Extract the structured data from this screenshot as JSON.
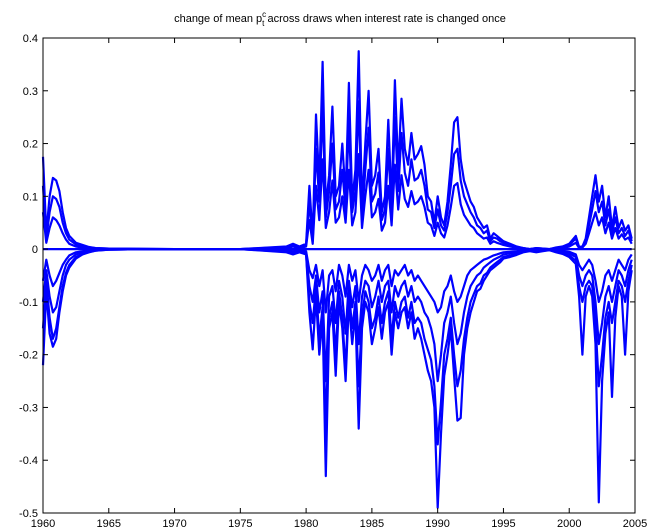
{
  "chart_data": {
    "type": "line",
    "title": {
      "prefix": "change of mean p",
      "superscript": "c",
      "subscript": "t",
      "suffix": " across draws when interest rate is changed once"
    },
    "xlabel": "",
    "ylabel": "",
    "xlim": [
      1960,
      2005
    ],
    "ylim": [
      -0.5,
      0.4
    ],
    "x_ticks": [
      1960,
      1965,
      1970,
      1975,
      1980,
      1985,
      1990,
      1995,
      2000,
      2005
    ],
    "y_ticks": [
      -0.5,
      -0.4,
      -0.3,
      -0.2,
      -0.1,
      0,
      0.1,
      0.2,
      0.3,
      0.4
    ],
    "grid": false,
    "legend": "none",
    "line_color": "#0000ff",
    "x": [
      1960.0,
      1960.25,
      1960.5,
      1960.75,
      1961.0,
      1961.25,
      1961.5,
      1961.75,
      1962.0,
      1962.5,
      1963.0,
      1963.5,
      1964.0,
      1965.0,
      1970.0,
      1975.0,
      1978.5,
      1979.0,
      1979.5,
      1980.0,
      1980.25,
      1980.5,
      1980.75,
      1981.0,
      1981.25,
      1981.5,
      1981.75,
      1982.0,
      1982.25,
      1982.5,
      1982.75,
      1983.0,
      1983.25,
      1983.5,
      1983.75,
      1984.0,
      1984.25,
      1984.5,
      1984.75,
      1985.0,
      1985.25,
      1985.5,
      1985.75,
      1986.0,
      1986.25,
      1986.5,
      1986.75,
      1987.0,
      1987.25,
      1987.5,
      1987.75,
      1988.0,
      1988.25,
      1988.5,
      1988.75,
      1989.0,
      1989.25,
      1989.5,
      1989.75,
      1990.0,
      1990.25,
      1990.5,
      1990.75,
      1991.0,
      1991.25,
      1991.5,
      1991.75,
      1992.0,
      1992.25,
      1992.5,
      1992.75,
      1993.0,
      1993.25,
      1993.5,
      1993.75,
      1994.0,
      1994.25,
      1994.5,
      1994.75,
      1995.0,
      1995.5,
      1996.0,
      1996.5,
      1997.0,
      1997.5,
      1998.0,
      1998.5,
      1999.0,
      1999.5,
      2000.0,
      2000.5,
      2000.75,
      2001.0,
      2001.25,
      2001.5,
      2001.75,
      2002.0,
      2002.25,
      2002.5,
      2002.75,
      2003.0,
      2003.25,
      2003.5,
      2003.75,
      2004.0,
      2004.25,
      2004.5,
      2004.75
    ],
    "series": [
      {
        "values": [
          0.175,
          0.03,
          0.1,
          0.135,
          0.13,
          0.11,
          0.07,
          0.04,
          0.025,
          0.012,
          0.008,
          0.004,
          0.002,
          0.001,
          0.0,
          0.0,
          0.005,
          0.01,
          0.005,
          0.01,
          0.12,
          0.02,
          0.255,
          0.12,
          0.355,
          0.08,
          0.14,
          0.27,
          0.1,
          0.12,
          0.2,
          0.1,
          0.315,
          0.09,
          0.15,
          0.375,
          0.08,
          0.2,
          0.3,
          0.12,
          0.14,
          0.19,
          0.07,
          0.1,
          0.245,
          0.09,
          0.32,
          0.15,
          0.285,
          0.19,
          0.16,
          0.22,
          0.17,
          0.18,
          0.195,
          0.16,
          0.1,
          0.09,
          0.05,
          0.1,
          0.06,
          0.045,
          0.09,
          0.16,
          0.24,
          0.25,
          0.17,
          0.13,
          0.11,
          0.09,
          0.08,
          0.06,
          0.05,
          0.04,
          0.045,
          0.02,
          0.03,
          0.025,
          0.02,
          0.015,
          0.01,
          0.005,
          0.002,
          0.0,
          0.002,
          0.001,
          0.0,
          0.003,
          0.005,
          0.01,
          0.025,
          0.004,
          0.005,
          0.02,
          0.06,
          0.1,
          0.14,
          0.09,
          0.12,
          0.06,
          0.1,
          0.04,
          0.08,
          0.04,
          0.055,
          0.035,
          0.045,
          0.02
        ]
      },
      {
        "values": [
          0.12,
          0.02,
          0.07,
          0.1,
          0.095,
          0.08,
          0.05,
          0.03,
          0.018,
          0.009,
          0.006,
          0.003,
          0.002,
          0.001,
          0.0,
          0.0,
          0.004,
          0.008,
          0.004,
          0.008,
          0.09,
          0.015,
          0.19,
          0.09,
          0.27,
          0.06,
          0.11,
          0.2,
          0.075,
          0.09,
          0.15,
          0.075,
          0.24,
          0.07,
          0.11,
          0.28,
          0.06,
          0.15,
          0.23,
          0.09,
          0.105,
          0.145,
          0.055,
          0.075,
          0.19,
          0.07,
          0.25,
          0.11,
          0.22,
          0.145,
          0.12,
          0.17,
          0.13,
          0.135,
          0.15,
          0.12,
          0.075,
          0.07,
          0.04,
          0.075,
          0.045,
          0.035,
          0.07,
          0.12,
          0.18,
          0.19,
          0.13,
          0.1,
          0.085,
          0.07,
          0.06,
          0.045,
          0.04,
          0.03,
          0.035,
          0.015,
          0.022,
          0.02,
          0.015,
          0.012,
          0.008,
          0.004,
          0.002,
          0.0,
          0.002,
          0.001,
          0.0,
          0.002,
          0.004,
          0.008,
          0.02,
          0.003,
          0.004,
          0.015,
          0.045,
          0.075,
          0.11,
          0.07,
          0.09,
          0.045,
          0.075,
          0.03,
          0.06,
          0.03,
          0.04,
          0.025,
          0.035,
          0.015
        ]
      },
      {
        "values": [
          0.07,
          0.012,
          0.04,
          0.06,
          0.055,
          0.045,
          0.03,
          0.018,
          0.01,
          0.005,
          0.003,
          0.002,
          0.001,
          0.0,
          0.0,
          0.0,
          0.002,
          0.005,
          0.002,
          0.005,
          0.055,
          0.01,
          0.12,
          0.055,
          0.17,
          0.04,
          0.07,
          0.13,
          0.05,
          0.06,
          0.1,
          0.05,
          0.15,
          0.045,
          0.07,
          0.18,
          0.04,
          0.1,
          0.15,
          0.06,
          0.07,
          0.095,
          0.035,
          0.05,
          0.12,
          0.045,
          0.16,
          0.075,
          0.14,
          0.095,
          0.08,
          0.11,
          0.085,
          0.09,
          0.1,
          0.08,
          0.05,
          0.045,
          0.025,
          0.05,
          0.03,
          0.022,
          0.045,
          0.08,
          0.12,
          0.125,
          0.085,
          0.065,
          0.055,
          0.045,
          0.04,
          0.03,
          0.025,
          0.02,
          0.022,
          0.01,
          0.015,
          0.012,
          0.01,
          0.008,
          0.005,
          0.003,
          0.001,
          0.0,
          0.001,
          0.0,
          0.0,
          0.001,
          0.002,
          0.005,
          0.012,
          0.002,
          0.003,
          0.01,
          0.03,
          0.05,
          0.07,
          0.045,
          0.06,
          0.03,
          0.05,
          0.02,
          0.04,
          0.02,
          0.028,
          0.018,
          0.022,
          0.01
        ]
      },
      {
        "values": [
          0.0,
          0.0,
          0.0,
          0.0,
          0.0,
          0.0,
          0.0,
          0.0,
          0.0,
          0.0,
          0.0,
          0.0,
          0.0,
          0.0,
          0.0,
          0.0,
          0.0,
          0.0,
          0.0,
          0.0,
          0.0,
          0.0,
          0.0,
          0.0,
          0.0,
          0.0,
          0.0,
          0.0,
          0.0,
          0.0,
          0.0,
          0.0,
          0.0,
          0.0,
          0.0,
          0.0,
          0.0,
          0.0,
          0.0,
          0.0,
          0.0,
          0.0,
          0.0,
          0.0,
          0.0,
          0.0,
          0.0,
          0.0,
          0.0,
          0.0,
          0.0,
          0.0,
          0.0,
          0.0,
          0.0,
          0.0,
          0.0,
          0.0,
          0.0,
          0.0,
          0.0,
          0.0,
          0.0,
          0.0,
          0.0,
          0.0,
          0.0,
          0.0,
          0.0,
          0.0,
          0.0,
          0.0,
          0.0,
          0.0,
          0.0,
          0.0,
          0.0,
          0.0,
          0.0,
          0.0,
          0.0,
          0.0,
          0.0,
          0.0,
          0.0,
          0.0,
          0.0,
          0.0,
          0.0,
          0.0,
          0.0,
          0.0,
          0.0,
          0.0,
          0.0,
          0.0,
          0.0,
          0.0,
          0.0,
          0.0,
          0.0,
          0.0,
          0.0,
          0.0,
          0.0,
          0.0,
          0.0,
          0.0
        ]
      },
      {
        "values": [
          -0.06,
          -0.02,
          -0.05,
          -0.07,
          -0.06,
          -0.045,
          -0.03,
          -0.02,
          -0.012,
          -0.006,
          -0.004,
          -0.002,
          -0.001,
          0.0,
          0.0,
          0.0,
          -0.002,
          -0.004,
          -0.002,
          -0.004,
          -0.04,
          -0.055,
          -0.03,
          -0.07,
          -0.04,
          -0.12,
          -0.05,
          -0.04,
          -0.08,
          -0.03,
          -0.05,
          -0.09,
          -0.03,
          -0.06,
          -0.04,
          -0.1,
          -0.05,
          -0.03,
          -0.04,
          -0.06,
          -0.05,
          -0.03,
          -0.06,
          -0.04,
          -0.03,
          -0.07,
          -0.04,
          -0.05,
          -0.04,
          -0.03,
          -0.05,
          -0.04,
          -0.06,
          -0.05,
          -0.06,
          -0.07,
          -0.08,
          -0.09,
          -0.1,
          -0.12,
          -0.11,
          -0.08,
          -0.07,
          -0.05,
          -0.08,
          -0.1,
          -0.09,
          -0.07,
          -0.05,
          -0.04,
          -0.035,
          -0.03,
          -0.025,
          -0.02,
          -0.018,
          -0.015,
          -0.012,
          -0.01,
          -0.008,
          -0.006,
          -0.005,
          -0.004,
          -0.002,
          -0.001,
          -0.002,
          -0.001,
          0.0,
          -0.002,
          -0.003,
          -0.005,
          -0.01,
          -0.03,
          -0.04,
          -0.03,
          -0.02,
          -0.03,
          -0.06,
          -0.1,
          -0.08,
          -0.05,
          -0.04,
          -0.06,
          -0.04,
          -0.02,
          -0.03,
          -0.04,
          -0.02,
          -0.01
        ]
      },
      {
        "values": [
          -0.1,
          -0.04,
          -0.09,
          -0.12,
          -0.11,
          -0.08,
          -0.05,
          -0.03,
          -0.02,
          -0.01,
          -0.006,
          -0.003,
          -0.002,
          -0.001,
          0.0,
          0.0,
          -0.003,
          -0.006,
          -0.003,
          -0.006,
          -0.07,
          -0.1,
          -0.05,
          -0.12,
          -0.08,
          -0.25,
          -0.09,
          -0.07,
          -0.14,
          -0.06,
          -0.09,
          -0.16,
          -0.06,
          -0.11,
          -0.07,
          -0.18,
          -0.09,
          -0.06,
          -0.07,
          -0.11,
          -0.09,
          -0.06,
          -0.1,
          -0.07,
          -0.06,
          -0.12,
          -0.07,
          -0.09,
          -0.07,
          -0.06,
          -0.09,
          -0.07,
          -0.1,
          -0.09,
          -0.1,
          -0.12,
          -0.13,
          -0.15,
          -0.18,
          -0.25,
          -0.2,
          -0.14,
          -0.12,
          -0.09,
          -0.14,
          -0.18,
          -0.16,
          -0.12,
          -0.09,
          -0.07,
          -0.06,
          -0.05,
          -0.045,
          -0.035,
          -0.03,
          -0.025,
          -0.02,
          -0.017,
          -0.014,
          -0.01,
          -0.008,
          -0.006,
          -0.003,
          -0.002,
          -0.003,
          -0.002,
          -0.001,
          -0.003,
          -0.005,
          -0.008,
          -0.015,
          -0.05,
          -0.07,
          -0.05,
          -0.04,
          -0.05,
          -0.1,
          -0.18,
          -0.14,
          -0.09,
          -0.07,
          -0.1,
          -0.07,
          -0.04,
          -0.05,
          -0.07,
          -0.04,
          -0.02
        ]
      },
      {
        "values": [
          -0.15,
          -0.06,
          -0.13,
          -0.17,
          -0.15,
          -0.11,
          -0.07,
          -0.045,
          -0.03,
          -0.015,
          -0.009,
          -0.005,
          -0.003,
          -0.001,
          0.0,
          0.0,
          -0.005,
          -0.009,
          -0.005,
          -0.009,
          -0.1,
          -0.14,
          -0.07,
          -0.17,
          -0.11,
          -0.34,
          -0.13,
          -0.1,
          -0.2,
          -0.08,
          -0.13,
          -0.23,
          -0.08,
          -0.15,
          -0.1,
          -0.26,
          -0.13,
          -0.08,
          -0.1,
          -0.15,
          -0.13,
          -0.09,
          -0.14,
          -0.1,
          -0.08,
          -0.17,
          -0.1,
          -0.13,
          -0.1,
          -0.09,
          -0.13,
          -0.1,
          -0.14,
          -0.13,
          -0.14,
          -0.17,
          -0.19,
          -0.21,
          -0.26,
          -0.37,
          -0.29,
          -0.2,
          -0.17,
          -0.13,
          -0.2,
          -0.26,
          -0.23,
          -0.17,
          -0.13,
          -0.1,
          -0.085,
          -0.07,
          -0.065,
          -0.05,
          -0.045,
          -0.035,
          -0.03,
          -0.025,
          -0.02,
          -0.015,
          -0.012,
          -0.009,
          -0.005,
          -0.003,
          -0.005,
          -0.003,
          -0.002,
          -0.005,
          -0.007,
          -0.012,
          -0.022,
          -0.07,
          -0.1,
          -0.07,
          -0.06,
          -0.07,
          -0.14,
          -0.26,
          -0.2,
          -0.13,
          -0.1,
          -0.14,
          -0.1,
          -0.06,
          -0.07,
          -0.1,
          -0.06,
          -0.03
        ]
      },
      {
        "values": [
          -0.22,
          -0.08,
          -0.16,
          -0.185,
          -0.17,
          -0.12,
          -0.08,
          -0.05,
          -0.035,
          -0.018,
          -0.01,
          -0.006,
          -0.003,
          -0.001,
          0.0,
          0.0,
          -0.006,
          -0.01,
          -0.006,
          -0.01,
          -0.12,
          -0.19,
          -0.09,
          -0.2,
          -0.13,
          -0.43,
          -0.15,
          -0.12,
          -0.24,
          -0.1,
          -0.15,
          -0.25,
          -0.1,
          -0.18,
          -0.12,
          -0.34,
          -0.15,
          -0.1,
          -0.12,
          -0.18,
          -0.15,
          -0.11,
          -0.17,
          -0.12,
          -0.1,
          -0.2,
          -0.12,
          -0.15,
          -0.12,
          -0.11,
          -0.15,
          -0.12,
          -0.17,
          -0.15,
          -0.17,
          -0.2,
          -0.23,
          -0.25,
          -0.3,
          -0.49,
          -0.35,
          -0.24,
          -0.2,
          -0.15,
          -0.24,
          -0.325,
          -0.32,
          -0.2,
          -0.15,
          -0.12,
          -0.1,
          -0.08,
          -0.075,
          -0.06,
          -0.05,
          -0.04,
          -0.035,
          -0.03,
          -0.025,
          -0.018,
          -0.015,
          -0.011,
          -0.006,
          -0.004,
          -0.006,
          -0.004,
          -0.002,
          -0.006,
          -0.009,
          -0.015,
          -0.028,
          -0.09,
          -0.2,
          -0.09,
          -0.07,
          -0.09,
          -0.18,
          -0.48,
          -0.25,
          -0.16,
          -0.12,
          -0.28,
          -0.13,
          -0.07,
          -0.09,
          -0.2,
          -0.08,
          -0.04
        ]
      }
    ]
  }
}
